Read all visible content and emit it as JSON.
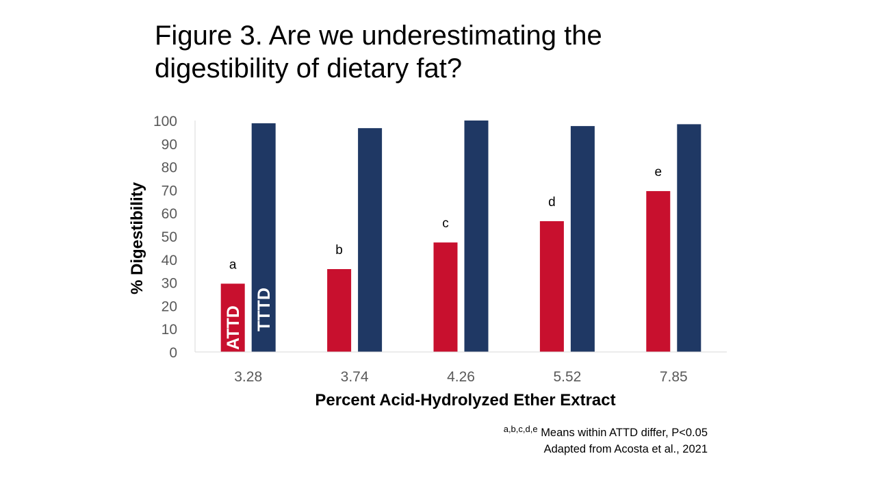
{
  "title_lines": [
    "Figure 3. Are we underestimating the",
    "digestibility of dietary fat?"
  ],
  "chart_data": {
    "type": "bar",
    "categories": [
      "3.28",
      "3.74",
      "4.26",
      "5.52",
      "7.85"
    ],
    "series": [
      {
        "name": "ATTD",
        "values": [
          29.5,
          35.8,
          47.3,
          56.5,
          69.5
        ],
        "color": "#c8102e",
        "letters": [
          "a",
          "b",
          "c",
          "d",
          "e"
        ]
      },
      {
        "name": "TTTD",
        "values": [
          98.8,
          96.7,
          100,
          97.6,
          98.4
        ],
        "color": "#1f3864"
      }
    ],
    "xlabel": "Percent Acid-Hydrolyzed Ether Extract",
    "ylabel": "% Digestibility",
    "ylim": [
      0,
      100
    ],
    "yticks": [
      0,
      10,
      20,
      30,
      40,
      50,
      60,
      70,
      80,
      90,
      100
    ],
    "grid": false,
    "legend": "inside first bars"
  },
  "footnote": {
    "superscript": "a,b,c,d,e",
    "line1": "Means within ATTD differ, P<0.05",
    "line2": "Adapted from Acosta et al.,  2021"
  }
}
